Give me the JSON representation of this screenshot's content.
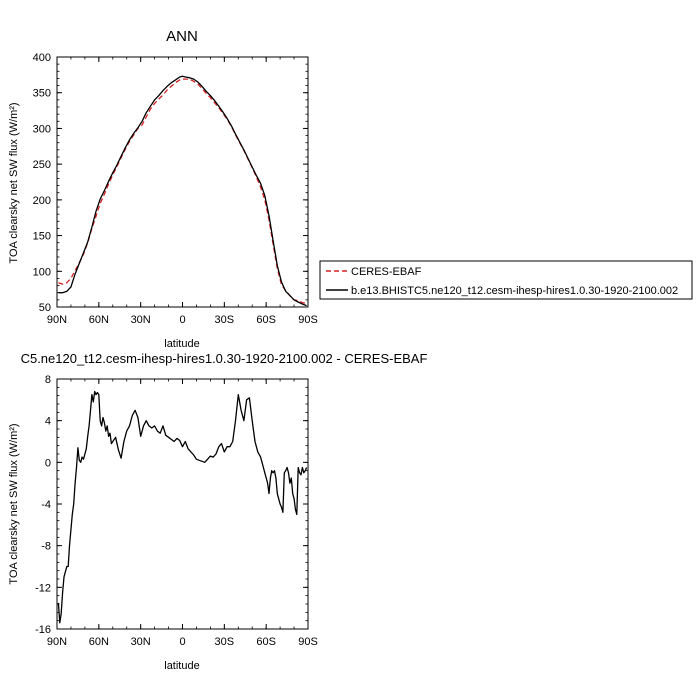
{
  "chart_data": [
    {
      "type": "line",
      "title": "ANN",
      "xlabel": "latitude",
      "ylabel": "TOA clearsky net SW flux (W/m²)",
      "xlim": [
        90,
        -90
      ],
      "ylim": [
        50,
        400
      ],
      "xticks": [
        90,
        60,
        30,
        0,
        -30,
        -60,
        -90
      ],
      "xtick_labels": [
        "90N",
        "60N",
        "30N",
        "0",
        "30S",
        "60S",
        "90S"
      ],
      "yticks": [
        50,
        100,
        150,
        200,
        250,
        300,
        350,
        400
      ],
      "ytick_labels": [
        "50",
        "100",
        "150",
        "200",
        "250",
        "300",
        "350",
        "400"
      ],
      "legend": {
        "placement": "right-outside"
      },
      "series": [
        {
          "name": "CERES-EBAF",
          "color": "#d62020",
          "dash": "dashed",
          "x": [
            89,
            86,
            83,
            80,
            77,
            74,
            71,
            68,
            65,
            62,
            59,
            56,
            53,
            50,
            47,
            44,
            41,
            38,
            35,
            32,
            29,
            26,
            23,
            20,
            17,
            14,
            11,
            8,
            5,
            2,
            0,
            -2,
            -5,
            -8,
            -11,
            -14,
            -17,
            -20,
            -23,
            -26,
            -29,
            -32,
            -35,
            -38,
            -41,
            -44,
            -47,
            -50,
            -53,
            -56,
            -59,
            -62,
            -65,
            -68,
            -71,
            -74,
            -77,
            -80,
            -83,
            -86,
            -89
          ],
          "y": [
            84,
            82,
            84,
            90,
            101,
            112,
            124,
            140,
            160,
            177,
            195,
            208,
            222,
            235,
            247,
            259,
            271,
            282,
            291,
            300,
            305,
            316,
            327,
            335,
            341,
            347,
            354,
            359,
            364,
            368,
            369,
            369,
            369,
            366,
            362,
            356,
            349,
            343,
            336,
            329,
            321,
            313,
            303,
            291,
            280,
            269,
            257,
            245,
            232,
            218,
            200,
            172,
            138,
            104,
            81,
            73,
            66,
            60,
            59,
            56,
            55
          ]
        },
        {
          "name": "b.e13.BHISTC5.ne120_t12.cesm-ihesp-hires1.0.30-1920-2100.002",
          "color": "#000000",
          "dash": "solid",
          "x": [
            89,
            86,
            83,
            80,
            77,
            74,
            71,
            68,
            65,
            62,
            59,
            56,
            53,
            50,
            47,
            44,
            41,
            38,
            35,
            32,
            29,
            26,
            23,
            20,
            17,
            14,
            11,
            8,
            5,
            2,
            0,
            -2,
            -5,
            -8,
            -11,
            -14,
            -17,
            -20,
            -23,
            -26,
            -29,
            -32,
            -35,
            -38,
            -41,
            -44,
            -47,
            -50,
            -53,
            -56,
            -59,
            -62,
            -65,
            -68,
            -71,
            -74,
            -77,
            -80,
            -83,
            -86,
            -89
          ],
          "y": [
            70,
            70,
            72,
            78,
            96,
            111,
            126,
            141,
            162,
            184,
            201,
            213,
            226,
            238,
            249,
            261,
            273,
            284,
            293,
            301,
            310,
            322,
            331,
            340,
            346,
            353,
            359,
            364,
            368,
            372,
            373,
            372,
            371,
            369,
            365,
            359,
            352,
            346,
            339,
            331,
            323,
            314,
            304,
            292,
            281,
            270,
            258,
            246,
            234,
            223,
            206,
            178,
            143,
            108,
            85,
            72,
            66,
            60,
            57,
            54,
            52
          ]
        }
      ]
    },
    {
      "type": "line",
      "title": "C5.ne120_t12.cesm-ihesp-hires1.0.30-1920-2100.002 - CERES-EBAF",
      "xlabel": "latitude",
      "ylabel": "TOA clearsky net SW flux (W/m²)",
      "xlim": [
        90,
        -90
      ],
      "ylim": [
        -16,
        8
      ],
      "xticks": [
        90,
        60,
        30,
        0,
        -30,
        -60,
        -90
      ],
      "xtick_labels": [
        "90N",
        "60N",
        "30N",
        "0",
        "30S",
        "60S",
        "90S"
      ],
      "yticks": [
        8,
        4,
        0,
        -4,
        -8,
        -12,
        -16
      ],
      "ytick_labels": [
        "8",
        "4",
        "0",
        "-4",
        "-8",
        "-12",
        "-16"
      ],
      "series": [
        {
          "color": "#000000",
          "dash": "solid",
          "x": [
            89,
            88,
            87,
            86,
            85,
            84,
            83,
            82,
            81,
            80,
            79,
            78,
            77,
            76,
            75,
            74,
            73,
            72,
            71,
            70,
            69,
            68,
            67,
            66,
            65,
            64,
            63,
            62,
            61,
            60,
            59,
            58,
            57,
            56,
            55,
            54,
            53,
            52,
            51,
            50,
            48,
            46,
            44,
            42,
            40,
            38,
            36,
            34,
            32,
            30,
            28,
            26,
            24,
            22,
            20,
            18,
            16,
            14,
            12,
            10,
            8,
            6,
            4,
            2,
            0,
            -2,
            -4,
            -6,
            -8,
            -10,
            -12,
            -14,
            -16,
            -18,
            -20,
            -22,
            -24,
            -26,
            -28,
            -30,
            -32,
            -34,
            -36,
            -38,
            -40,
            -42,
            -44,
            -46,
            -48,
            -50,
            -52,
            -54,
            -56,
            -58,
            -59,
            -60,
            -61,
            -62,
            -63,
            -64,
            -65,
            -66,
            -67,
            -68,
            -69,
            -70,
            -71,
            -72,
            -73,
            -74,
            -75,
            -76,
            -77,
            -78,
            -79,
            -80,
            -81,
            -82,
            -83,
            -84,
            -85,
            -86,
            -87,
            -88,
            -89
          ],
          "y": [
            -13.5,
            -15.4,
            -14.5,
            -12.5,
            -11.0,
            -10.5,
            -10.0,
            -10.0,
            -8.0,
            -6.5,
            -5.0,
            -4.0,
            -2.0,
            -0.5,
            1.4,
            0.2,
            0.0,
            0.5,
            0.3,
            0.8,
            1.3,
            2.5,
            3.5,
            5.0,
            6.5,
            5.8,
            6.8,
            6.5,
            6.7,
            6.5,
            4.0,
            3.5,
            4.3,
            3.8,
            3.0,
            3.5,
            2.5,
            2.8,
            1.8,
            2.0,
            2.4,
            1.2,
            0.4,
            2.0,
            3.0,
            3.5,
            4.5,
            5.0,
            4.3,
            2.5,
            3.5,
            4.0,
            3.5,
            3.3,
            3.5,
            3.0,
            2.8,
            3.5,
            2.6,
            2.4,
            2.2,
            2.0,
            2.3,
            2.1,
            1.5,
            2.0,
            1.3,
            1.0,
            0.7,
            0.3,
            0.2,
            0.1,
            0.0,
            0.3,
            0.6,
            0.5,
            0.8,
            1.5,
            1.8,
            1.0,
            1.5,
            1.5,
            2.0,
            4.0,
            6.5,
            5.0,
            4.0,
            6.0,
            6.2,
            4.0,
            2.0,
            1.0,
            0.5,
            -0.5,
            -1.0,
            -1.5,
            -2.0,
            -3.0,
            -1.5,
            -0.8,
            -1.0,
            -0.8,
            -1.5,
            -3.0,
            -3.5,
            -4.0,
            -4.3,
            -4.8,
            -1.0,
            -0.8,
            -0.5,
            -1.0,
            -2.0,
            -1.5,
            -3.0,
            -3.5,
            -4.5,
            -5.0,
            -0.5,
            -1.0,
            -1.2,
            -0.5,
            -1.0,
            -0.8,
            -0.5
          ]
        }
      ]
    }
  ]
}
